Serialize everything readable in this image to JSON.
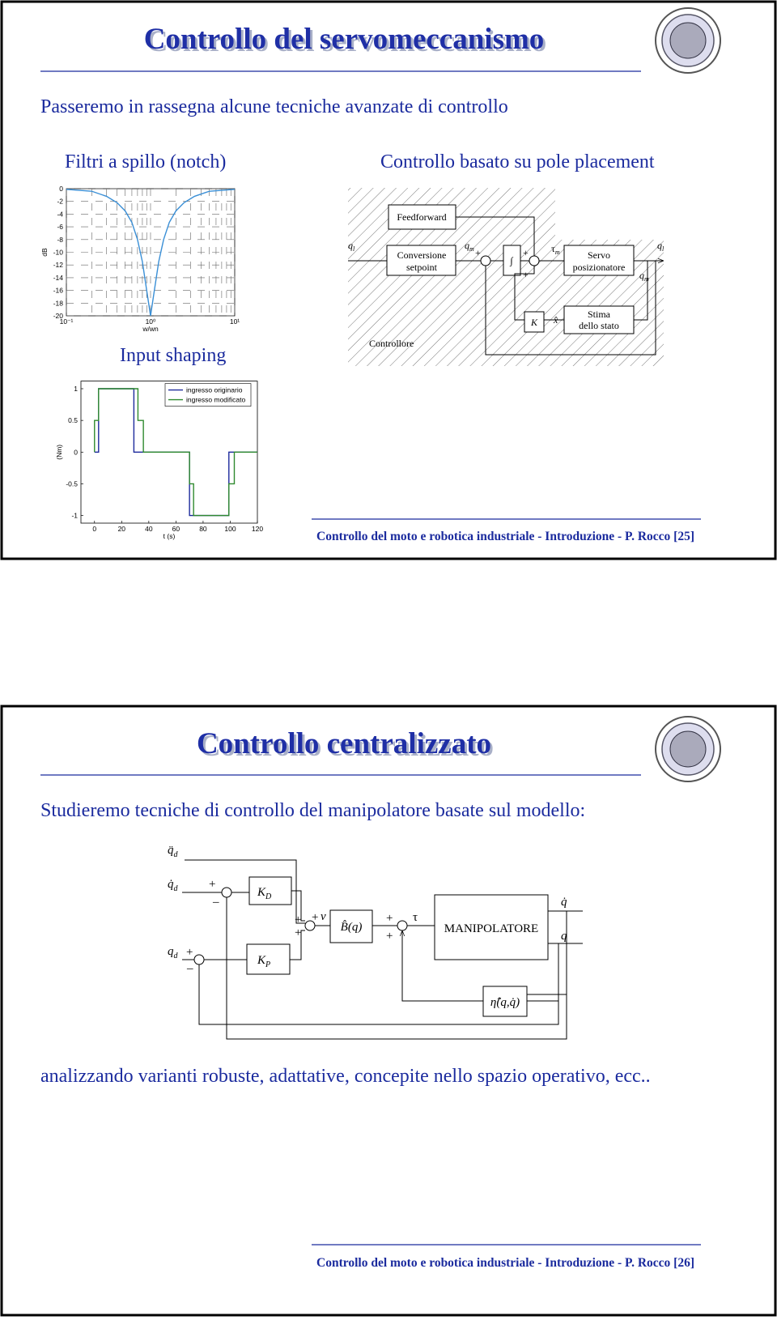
{
  "slides": [
    {
      "title": "Controllo del servomeccanismo",
      "intro": "Passeremo in rassegna alcune tecniche avanzate di controllo",
      "left_heading": "Filtri a spillo (notch)",
      "right_heading": "Controllo basato su pole placement",
      "lower_heading": "Input shaping",
      "footer": "Controllo del moto e robotica industriale - Introduzione - P. Rocco [25]",
      "diagram": {
        "feedforward": "Feedforward",
        "conversion": [
          "Conversione",
          "setpoint"
        ],
        "servo": [
          "Servo",
          "posizionatore"
        ],
        "estimator": [
          "Stima",
          "dello stato"
        ],
        "gain": "K",
        "state": "x̂",
        "controller": "Controllore",
        "integral": "∫",
        "q": "q",
        "l": "l",
        "m": "m",
        "tau": "τ",
        "plus": "+"
      }
    },
    {
      "title": "Controllo centralizzato",
      "intro": "Studieremo tecniche di controllo del manipolatore basate sul modello:",
      "outro": "analizzando varianti robuste, adattative, concepite nello spazio operativo, ecc..",
      "footer": "Controllo del moto e robotica industriale - Introduzione - P. Rocco [26]",
      "diagram": {
        "qdd": "q̈",
        "qd_dot": "q̇",
        "q": "q",
        "d": "d",
        "kd": "K",
        "D": "D",
        "kp": "K",
        "P": "P",
        "v": "v",
        "inertia": "B̂(q)",
        "tau": "τ",
        "plant": "MANIPOLATORE",
        "eta": "η̂(q,q̇)",
        "plus": "+",
        "minus": "–"
      }
    }
  ],
  "chart_data": [
    {
      "type": "line",
      "x_label": "w/wn",
      "y_label": "dB",
      "xscale": "log",
      "grid": true,
      "xlim": [
        0.1,
        10
      ],
      "xticks": [
        {
          "value": 0.1,
          "label": "10⁻¹"
        },
        {
          "value": 1,
          "label": "10⁰"
        },
        {
          "value": 10,
          "label": "10¹"
        }
      ],
      "x_minor_ticks": [
        0.2,
        0.3,
        0.4,
        0.5,
        0.6,
        0.7,
        0.8,
        0.9,
        2,
        3,
        4,
        5,
        6,
        7,
        8,
        9
      ],
      "ylim": [
        -20,
        0
      ],
      "yticks": [
        0,
        -2,
        -4,
        -6,
        -8,
        -10,
        -12,
        -14,
        -16,
        -18,
        -20
      ],
      "series": [
        {
          "color": "#3a8fd6",
          "x": [
            0.1,
            0.2,
            0.3,
            0.4,
            0.5,
            0.6,
            0.7,
            0.8,
            0.9,
            1,
            1.11,
            1.25,
            1.43,
            1.67,
            2,
            2.5,
            3.33,
            5,
            10
          ],
          "values": [
            -0.1,
            -0.4,
            -1.2,
            -2.2,
            -3.5,
            -5.3,
            -8,
            -11.5,
            -16,
            -20,
            -16,
            -11.5,
            -8,
            -5.3,
            -3.5,
            -2.2,
            -1.2,
            -0.4,
            -0.1
          ]
        }
      ]
    },
    {
      "type": "line",
      "x_label": "t (s)",
      "y_label": "(Nm)",
      "grid": false,
      "legend": "top-right",
      "xlim": [
        -10,
        120
      ],
      "xticks": [
        0,
        20,
        40,
        60,
        80,
        100,
        120
      ],
      "ylim": [
        -1.12,
        1.12
      ],
      "yticks": [
        -1,
        -0.5,
        0,
        0.5,
        1
      ],
      "series": [
        {
          "name": "ingresso originario",
          "color": "#1d2a9c",
          "x": [
            0,
            3,
            3,
            29,
            29,
            70,
            70,
            99,
            99,
            120
          ],
          "values": [
            0,
            0,
            1,
            1,
            0,
            0,
            -1,
            -1,
            0,
            0
          ]
        },
        {
          "name": "ingresso modificato",
          "color": "#2f8a2f",
          "x": [
            0,
            0,
            3,
            3,
            32,
            32,
            36,
            36,
            70,
            70,
            73,
            73,
            99,
            99,
            103,
            103,
            120
          ],
          "values": [
            0,
            0.5,
            0.5,
            1,
            1,
            0.5,
            0.5,
            0,
            0,
            -0.5,
            -0.5,
            -1,
            -1,
            -0.5,
            -0.5,
            0,
            0
          ]
        }
      ]
    }
  ]
}
